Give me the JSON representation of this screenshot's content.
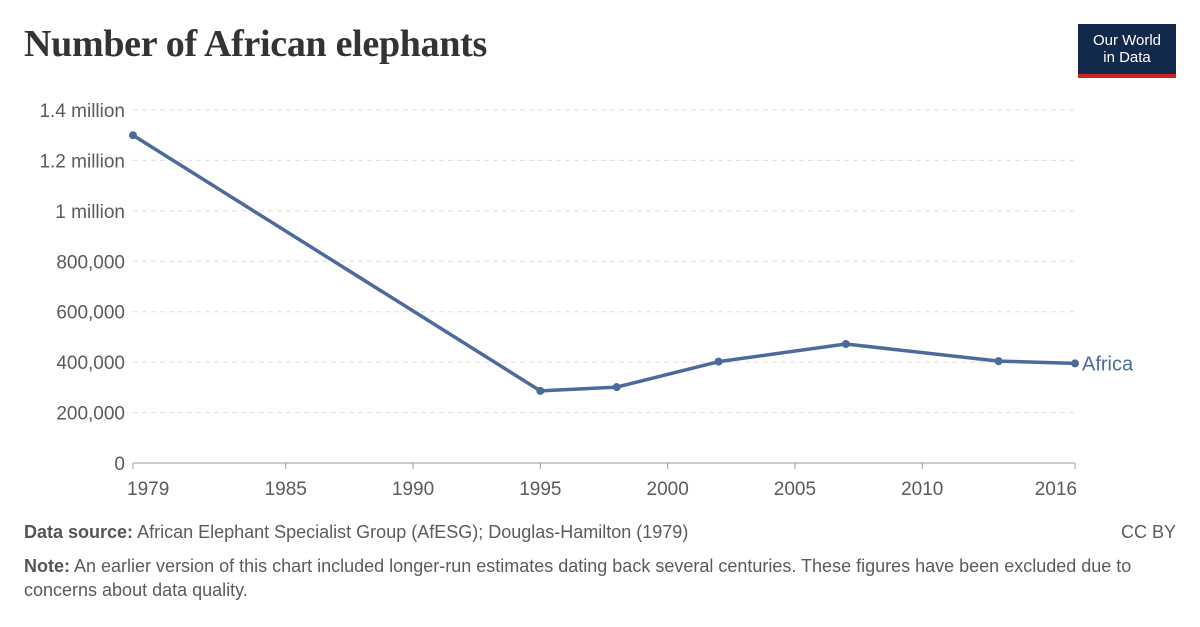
{
  "title": "Number of African elephants",
  "logo": {
    "line1": "Our World",
    "line2": "in Data"
  },
  "colors": {
    "series": "#4c6a9c",
    "grid": "#dddddd",
    "axis": "#999999"
  },
  "chart_data": {
    "type": "line",
    "title": "Number of African elephants",
    "xlabel": "",
    "ylabel": "",
    "xlim": [
      1979,
      2016
    ],
    "ylim": [
      0,
      1400000
    ],
    "grid": true,
    "x_ticks": [
      1979,
      1985,
      1990,
      1995,
      2000,
      2005,
      2010,
      2016
    ],
    "y_ticks": [
      {
        "value": 0,
        "label": "0"
      },
      {
        "value": 200000,
        "label": "200,000"
      },
      {
        "value": 400000,
        "label": "400,000"
      },
      {
        "value": 600000,
        "label": "600,000"
      },
      {
        "value": 800000,
        "label": "800,000"
      },
      {
        "value": 1000000,
        "label": "1 million"
      },
      {
        "value": 1200000,
        "label": "1.2 million"
      },
      {
        "value": 1400000,
        "label": "1.4 million"
      }
    ],
    "series": [
      {
        "name": "Africa",
        "x": [
          1979,
          1995,
          1998,
          2002,
          2007,
          2013,
          2016
        ],
        "values": [
          1300000,
          286000,
          301000,
          402000,
          472000,
          404000,
          395000
        ]
      }
    ]
  },
  "footer": {
    "source_label": "Data source:",
    "source_text": "African Elephant Specialist Group (AfESG); Douglas-Hamilton (1979)",
    "license": "CC BY",
    "note_label": "Note:",
    "note_text": "An earlier version of this chart included longer-run estimates dating back several centuries. These figures have been excluded due to concerns about data quality."
  }
}
